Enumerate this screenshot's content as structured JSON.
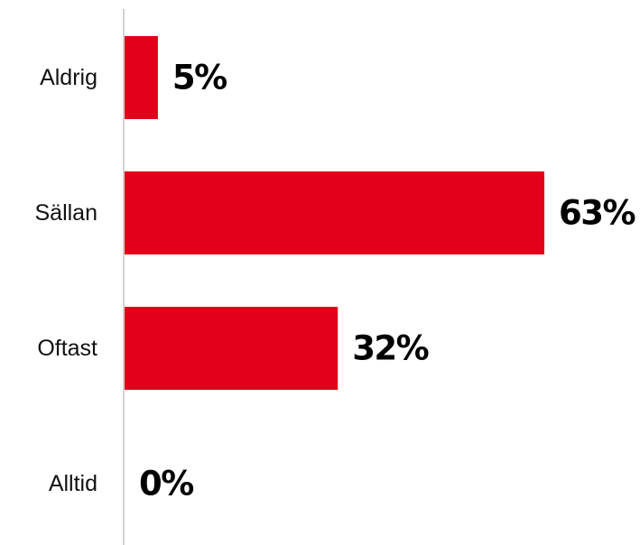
{
  "chart_data": {
    "type": "bar",
    "orientation": "horizontal",
    "categories": [
      "Aldrig",
      "Sällan",
      "Oftast",
      "Alltid"
    ],
    "values": [
      5,
      63,
      32,
      0
    ],
    "value_labels": [
      "5%",
      "63%",
      "32%",
      "0%"
    ],
    "unit": "%",
    "bar_color": "#e2001a",
    "xlim": [
      0,
      63
    ],
    "grid": false,
    "legend": "none"
  }
}
